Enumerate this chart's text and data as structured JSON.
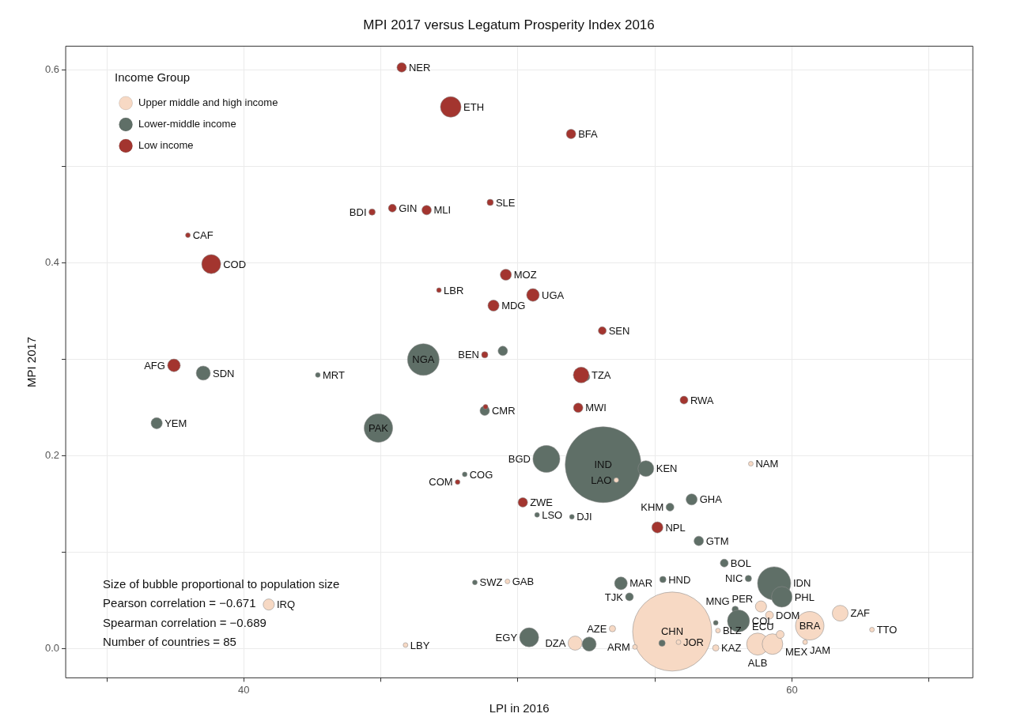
{
  "chart_data": {
    "type": "bubble",
    "title": "MPI 2017 versus Legatum Prosperity Index 2016",
    "xlabel": "LPI in 2016",
    "ylabel": "MPI 2017",
    "legend_title": "Income Group",
    "legend": "top left",
    "grid": true,
    "xlim": [
      33.5,
      66.6
    ],
    "xticks": [
      {
        "value": 35,
        "label": null
      },
      40,
      {
        "value": 45,
        "label": null
      },
      {
        "value": 50,
        "label": null
      },
      {
        "value": 55,
        "label": null
      },
      60,
      {
        "value": 65,
        "label": null
      }
    ],
    "ylim": [
      -0.03,
      0.625
    ],
    "yticks": [
      {
        "value": 0,
        "label": "0.0"
      },
      {
        "value": 0.1,
        "label": null
      },
      {
        "value": 0.2,
        "label": "0.2"
      },
      {
        "value": 0.3,
        "label": null
      },
      {
        "value": 0.4,
        "label": "0.4"
      },
      {
        "value": 0.5,
        "label": null
      },
      {
        "value": 0.6,
        "label": "0.6"
      }
    ],
    "annotations": [
      "Size of bubble proportional to population size",
      "Pearson correlation = −0.671",
      "Spearman correlation = −0.689",
      "Number of countries = 85"
    ],
    "series": [
      {
        "name": "Upper middle and high income",
        "color": "#f7d9c4",
        "x": [
          40.91,
          45.9,
          55.63,
          53.45,
          55.86,
          57.22,
          58.75,
          59.29,
          59.57,
          58.87,
          59.18,
          60.65,
          60.48,
          61.76,
          62.92,
          58.5,
          49.62,
          57.3,
          54.27,
          52.09,
          53.59
        ],
        "values": [
          0.046,
          0.004,
          0.018,
          0.021,
          0.007,
          0.001,
          0.005,
          0.005,
          0.015,
          0.044,
          0.035,
          0.024,
          0.007,
          0.037,
          0.02,
          0.192,
          0.07,
          0.019,
          0.002,
          0.006,
          0.175
        ],
        "sizes": [
          0.02,
          0.0036,
          1,
          0.0064,
          0.0036,
          0.0064,
          0.078,
          0.068,
          0.01,
          0.02,
          0.01,
          0.13,
          0.0036,
          0.04,
          0.0036,
          0.0036,
          0.0036,
          0.0036,
          0.0036,
          0.032,
          0.0036
        ],
        "value_labels": [
          "IRQ",
          "LBY",
          "CHN",
          "AZE",
          "JOR",
          "KAZ",
          "ALB",
          "MEX",
          "ECU",
          "PER",
          "DOM",
          "BRA",
          "JAM",
          "ZAF",
          "TTO",
          "NAM",
          "GAB",
          "BLZ",
          "ARM",
          "DZA",
          "LAO"
        ]
      },
      {
        "name": "Lower-middle income",
        "color": "#5f6f67",
        "x": [
          46.55,
          49.45,
          38.52,
          42.7,
          36.82,
          44.91,
          48.79,
          52.48,
          51.04,
          53.11,
          54.67,
          48.06,
          56.34,
          55.55,
          50.7,
          51.97,
          56.6,
          57.53,
          58.41,
          59.35,
          59.63,
          55.29,
          53.76,
          54.07,
          48.43,
          57.93,
          58.05,
          57.22,
          50.41,
          52.6,
          55.26
        ],
        "values": [
          0.3,
          0.309,
          0.286,
          0.284,
          0.234,
          0.229,
          0.247,
          0.282,
          0.197,
          0.191,
          0.187,
          0.181,
          0.155,
          0.147,
          0.139,
          0.137,
          0.112,
          0.089,
          0.073,
          0.068,
          0.054,
          0.072,
          0.068,
          0.054,
          0.069,
          0.041,
          0.029,
          0.027,
          0.012,
          0.005,
          0.006
        ],
        "sizes": [
          0.16,
          0.0144,
          0.032,
          0.0036,
          0.02,
          0.13,
          0.0144,
          0.01,
          0.116,
          0.92,
          0.04,
          0.0036,
          0.02,
          0.01,
          0.0036,
          0.0036,
          0.0144,
          0.01,
          0.0064,
          0.176,
          0.068,
          0.0064,
          0.026,
          0.01,
          0.0036,
          0.0064,
          0.078,
          0.0036,
          0.058,
          0.032,
          0.0064
        ],
        "value_labels": [
          "NGA",
          null,
          "SDN",
          "MRT",
          "YEM",
          "PAK",
          "CMR",
          null,
          "BGD",
          "IND",
          "KEN",
          "COG",
          "GHA",
          "KHM",
          "LSO",
          "DJI",
          "GTM",
          "BOL",
          "NIC",
          "IDN",
          "PHL",
          "HND",
          "MAR",
          "TJK",
          "SWZ",
          "MNG",
          "COL",
          null,
          "EGY",
          null,
          null
        ]
      },
      {
        "name": "Low income",
        "color": "#a3352f",
        "x": [
          45.76,
          47.55,
          51.94,
          44.68,
          45.42,
          46.67,
          48.99,
          37.96,
          38.81,
          49.56,
          47.12,
          50.55,
          49.11,
          53.08,
          48.79,
          37.45,
          52.31,
          48.82,
          52.2,
          56.06,
          50.18,
          55.09,
          47.8
        ],
        "values": [
          0.603,
          0.562,
          0.534,
          0.453,
          0.457,
          0.455,
          0.463,
          0.429,
          0.399,
          0.388,
          0.372,
          0.367,
          0.356,
          0.33,
          0.305,
          0.294,
          0.284,
          0.251,
          0.25,
          0.258,
          0.152,
          0.126,
          0.173
        ],
        "sizes": [
          0.0144,
          0.068,
          0.0144,
          0.0064,
          0.01,
          0.0144,
          0.0064,
          0.0036,
          0.058,
          0.02,
          0.0036,
          0.026,
          0.02,
          0.01,
          0.0064,
          0.026,
          0.04,
          0.0036,
          0.0144,
          0.01,
          0.0144,
          0.02,
          0.0036
        ],
        "value_labels": [
          "NER",
          "ETH",
          "BFA",
          "BDI",
          "GIN",
          "MLI",
          "SLE",
          "CAF",
          "COD",
          "MOZ",
          "LBR",
          "UGA",
          "MDG",
          "SEN",
          "BEN",
          "AFG",
          "TZA",
          null,
          "MWI",
          "RWA",
          "ZWE",
          "NPL",
          "COM"
        ]
      }
    ]
  }
}
